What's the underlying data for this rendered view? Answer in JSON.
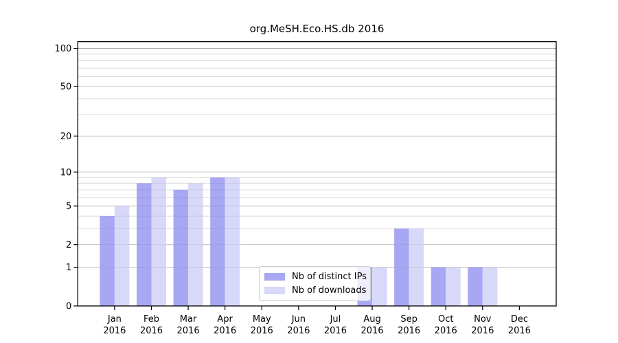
{
  "chart_data": {
    "type": "bar",
    "title": "org.MeSH.Eco.HS.db 2016",
    "categories": [
      "Jan",
      "Feb",
      "Mar",
      "Apr",
      "May",
      "Jun",
      "Jul",
      "Aug",
      "Sep",
      "Oct",
      "Nov",
      "Dec"
    ],
    "x_tick_sublabel": "2016",
    "series": [
      {
        "name": "Nb of distinct IPs",
        "color": "#a7a7f3",
        "values": [
          4,
          8,
          7,
          9,
          0,
          0,
          0,
          1,
          3,
          1,
          1,
          0
        ]
      },
      {
        "name": "Nb of downloads",
        "color": "#d8d8f8",
        "values": [
          5,
          9,
          8,
          9,
          0,
          0,
          0,
          1,
          3,
          1,
          1,
          0
        ]
      }
    ],
    "y_axis": {
      "scale": "log1p",
      "tick_values": [
        0,
        1,
        2,
        5,
        10,
        20,
        50,
        100
      ],
      "minor_gridline_values": [
        3,
        4,
        6,
        7,
        8,
        9,
        30,
        40,
        60,
        70,
        80,
        90
      ],
      "ylim": [
        0,
        113
      ]
    },
    "xlabel": "",
    "ylabel": "",
    "grid": true,
    "legend_position": "lower-center"
  },
  "colors": {
    "spine": "#000000",
    "major_grid": "#cfcfcf",
    "top_grid": "#b3b3b3",
    "minor_grid": "#ececec",
    "grid_overlay": "rgba(80,80,80,0.10)"
  }
}
